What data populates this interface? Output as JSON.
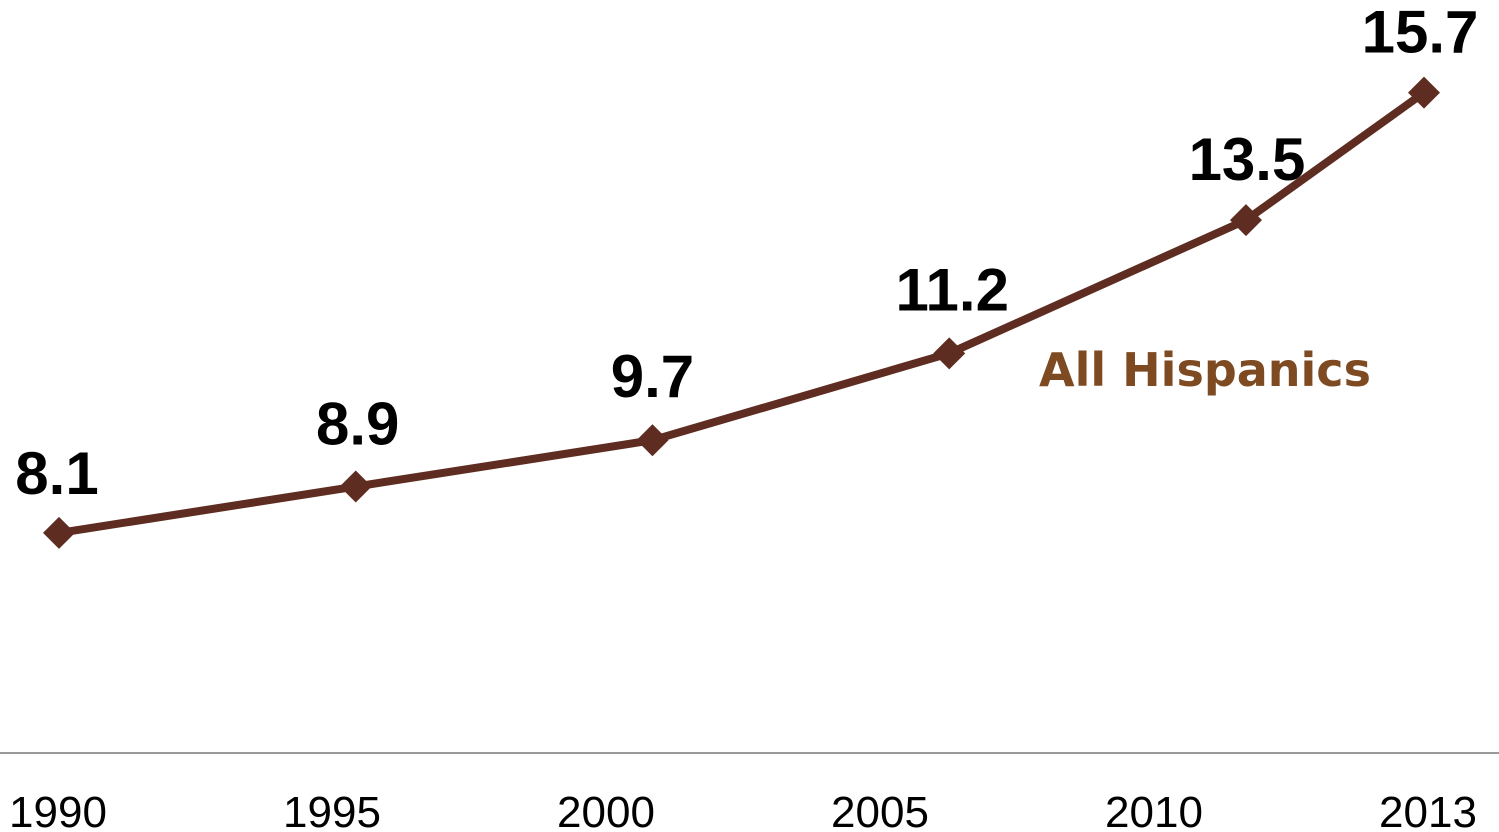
{
  "chart_data": {
    "type": "line",
    "categories": [
      "1990",
      "1995",
      "2000",
      "2005",
      "2010",
      "2013"
    ],
    "series": [
      {
        "name": "All Hispanics",
        "values": [
          8.1,
          8.9,
          9.7,
          11.2,
          13.5,
          15.7
        ]
      }
    ],
    "data_labels": [
      "8.1",
      "8.9",
      "9.7",
      "11.2",
      "13.5",
      "15.7"
    ],
    "title": "",
    "xlabel": "",
    "ylabel": "",
    "ylim": [
      4.3,
      17.3
    ],
    "grid": false,
    "legend": "series label placed inline, right of the line",
    "colors": {
      "line": "#5e2c20",
      "series_label": "#7e4a21",
      "axis": "#9a9a9a"
    }
  }
}
